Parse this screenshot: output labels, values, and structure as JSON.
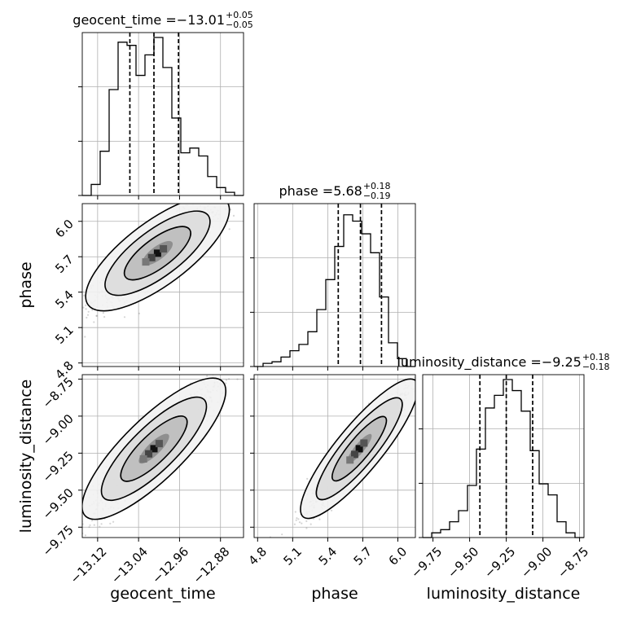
{
  "chart_data": {
    "type": "corner",
    "parameters": [
      {
        "name": "geocent_time",
        "label": "geocent_time",
        "title_value": "−13.01",
        "title_plus": "+0.05",
        "title_minus": "−0.05",
        "range": [
          -13.15,
          -12.835
        ],
        "ticks": [
          -13.12,
          -13.04,
          -12.96,
          -12.88
        ],
        "tick_labels": [
          "−13.12",
          "−13.04",
          "−12.96",
          "−12.88"
        ],
        "quantiles": [
          -13.057,
          -13.01,
          -12.962
        ],
        "hist_edges": [
          -13.15,
          -12.835
        ],
        "hist_counts": [
          0,
          0.07,
          0.28,
          0.67,
          0.97,
          0.95,
          0.76,
          0.89,
          1.0,
          0.81,
          0.49,
          0.27,
          0.3,
          0.25,
          0.12,
          0.05,
          0.02,
          0
        ]
      },
      {
        "name": "phase",
        "label": "phase",
        "title_value": "5.68",
        "title_plus": "+0.18",
        "title_minus": "−0.19",
        "range": [
          4.77,
          6.15
        ],
        "ticks": [
          4.8,
          5.1,
          5.4,
          5.7,
          6.0
        ],
        "tick_labels": [
          "4.8",
          "5.1",
          "5.4",
          "5.7",
          "6.0"
        ],
        "quantiles": [
          5.49,
          5.68,
          5.86
        ],
        "hist_counts": [
          0,
          0.02,
          0.03,
          0.06,
          0.1,
          0.14,
          0.22,
          0.36,
          0.55,
          0.76,
          0.96,
          0.92,
          0.84,
          0.72,
          0.44,
          0.15,
          0.05,
          0
        ]
      },
      {
        "name": "luminosity_distance",
        "label": "luminosity_distance",
        "title_value": "−9.25",
        "title_plus": "+0.18",
        "title_minus": "−0.18",
        "range": [
          -9.82,
          -8.72
        ],
        "ticks": [
          -9.75,
          -9.5,
          -9.25,
          -9.0,
          -8.75
        ],
        "tick_labels": [
          "−9.75",
          "−9.50",
          "−9.25",
          "−9.00",
          "−8.75"
        ],
        "quantiles": [
          -9.43,
          -9.25,
          -9.07
        ],
        "hist_counts": [
          0,
          0.03,
          0.05,
          0.1,
          0.17,
          0.33,
          0.56,
          0.82,
          0.9,
          1.0,
          0.93,
          0.8,
          0.55,
          0.34,
          0.27,
          0.1,
          0.03,
          0
        ]
      }
    ],
    "contours": [
      {
        "x": "geocent_time",
        "y": "phase",
        "peak": [
          -13.003,
          5.73
        ],
        "sigma_x": 0.05,
        "sigma_y": 0.18,
        "rho": 0.9
      },
      {
        "x": "geocent_time",
        "y": "luminosity_distance",
        "peak": [
          -13.01,
          -9.22
        ],
        "sigma_x": 0.05,
        "sigma_y": 0.18,
        "rho": 0.94
      },
      {
        "x": "phase",
        "y": "luminosity_distance",
        "peak": [
          5.67,
          -9.22
        ],
        "sigma_x": 0.18,
        "sigma_y": 0.18,
        "rho": 0.96
      }
    ],
    "grid": true,
    "line_color": "#000000",
    "sample_color": "#888888"
  }
}
